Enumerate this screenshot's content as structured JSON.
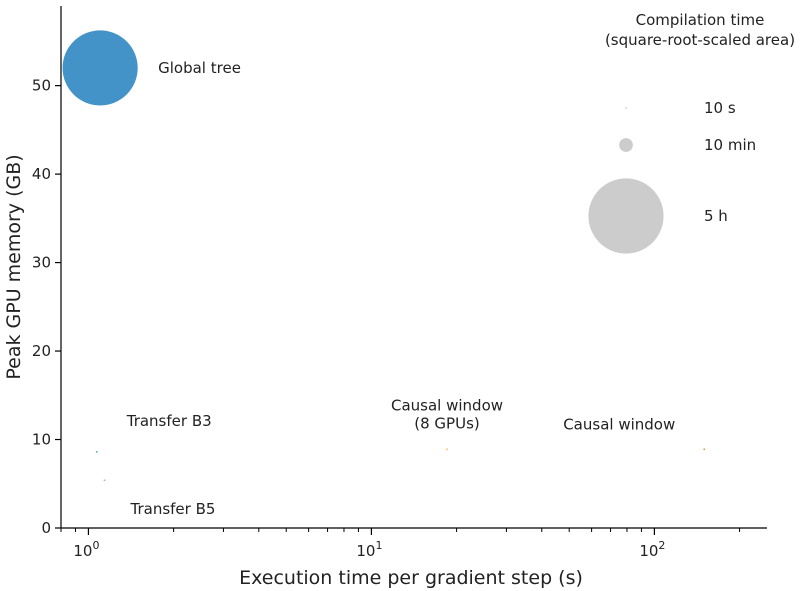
{
  "chart_data": {
    "type": "scatter",
    "xlabel": "Execution time per gradient step (s)",
    "ylabel": "Peak GPU memory (GB)",
    "x_scale": "log",
    "xlim": [
      0.8,
      250
    ],
    "ylim": [
      0,
      59
    ],
    "x_ticks": [
      {
        "value": 1,
        "base": "10",
        "exp": "0"
      },
      {
        "value": 10,
        "base": "10",
        "exp": "1"
      },
      {
        "value": 100,
        "base": "10",
        "exp": "2"
      }
    ],
    "y_ticks": [
      0,
      10,
      20,
      30,
      40,
      50
    ],
    "grid": false,
    "points": [
      {
        "label": "Global tree",
        "x": 1.1,
        "y": 52,
        "compile_time_s": 18000,
        "color": "#3a8dc5"
      },
      {
        "label": "Transfer B3",
        "x": 1.07,
        "y": 8.6,
        "compile_time_s": 10,
        "color": "#3aaa8f"
      },
      {
        "label": "Transfer B5",
        "x": 1.14,
        "y": 5.4,
        "compile_time_s": 10,
        "color": "#d990c2"
      },
      {
        "label": "Causal window\n(8 GPUs)",
        "x": 18.5,
        "y": 8.9,
        "compile_time_s": 10,
        "color": "#f0b93a"
      },
      {
        "label": "Causal window",
        "x": 150,
        "y": 8.9,
        "compile_time_s": 10,
        "color": "#e0883a"
      }
    ],
    "size_legend": {
      "title_lines": [
        "Compilation time",
        "(square-root-scaled area)"
      ],
      "entries": [
        {
          "label": "10 s",
          "compile_time_s": 10
        },
        {
          "label": "10 min",
          "compile_time_s": 600
        },
        {
          "label": "5 h",
          "compile_time_s": 18000
        }
      ],
      "color": "#cccccc",
      "placement": "top-right"
    }
  }
}
